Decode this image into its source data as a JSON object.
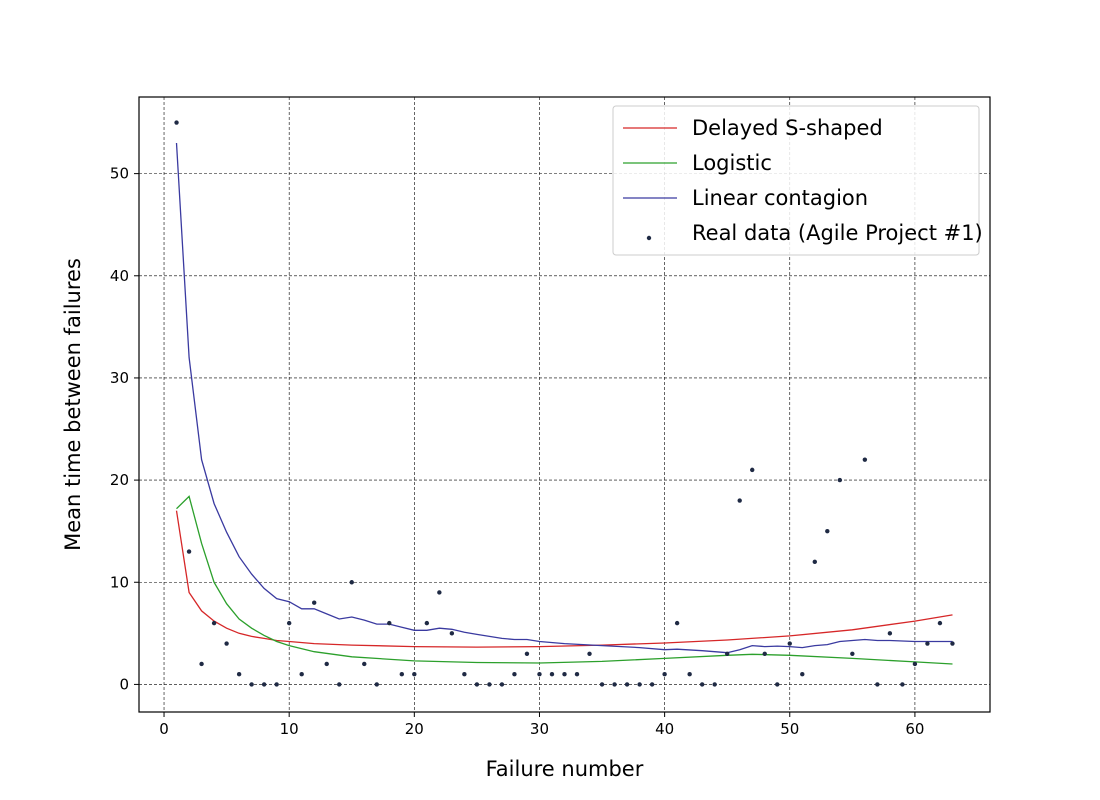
{
  "chart_data": {
    "type": "line",
    "xlabel": "Failure number",
    "ylabel": "Mean time between failures",
    "xlim": [
      -2,
      66
    ],
    "ylim": [
      -2.7,
      57.5
    ],
    "xticks": [
      0,
      10,
      20,
      30,
      40,
      50,
      60
    ],
    "yticks": [
      0,
      10,
      20,
      30,
      40,
      50
    ],
    "grid": true,
    "legend_position": "top-right",
    "series": [
      {
        "name": "Delayed S-shaped",
        "kind": "line",
        "color": "#d62728",
        "x": [
          1,
          2,
          3,
          4,
          5,
          6,
          7,
          8,
          9,
          10,
          12,
          15,
          20,
          25,
          30,
          35,
          40,
          45,
          50,
          55,
          60,
          63
        ],
        "y": [
          17,
          9,
          7.2,
          6.2,
          5.5,
          5.0,
          4.7,
          4.5,
          4.3,
          4.2,
          4.0,
          3.85,
          3.7,
          3.65,
          3.7,
          3.85,
          4.05,
          4.35,
          4.75,
          5.35,
          6.2,
          6.8
        ]
      },
      {
        "name": "Logistic",
        "kind": "line",
        "color": "#2ca02c",
        "x": [
          1,
          2,
          3,
          4,
          5,
          6,
          7,
          8,
          9,
          10,
          12,
          15,
          20,
          25,
          30,
          35,
          40,
          45,
          47,
          50,
          55,
          60,
          63
        ],
        "y": [
          17.2,
          18.4,
          13.8,
          10,
          7.9,
          6.4,
          5.5,
          4.8,
          4.2,
          3.8,
          3.2,
          2.7,
          2.3,
          2.15,
          2.1,
          2.25,
          2.55,
          2.85,
          2.95,
          2.85,
          2.55,
          2.2,
          2.0
        ]
      },
      {
        "name": "Linear contagion",
        "kind": "line",
        "color": "#3a3aa0",
        "x": [
          1,
          2,
          3,
          4,
          5,
          6,
          7,
          8,
          9,
          10,
          11,
          12,
          13,
          14,
          15,
          16,
          17,
          18,
          19,
          20,
          21,
          22,
          23,
          24,
          25,
          26,
          27,
          28,
          29,
          30,
          32,
          35,
          38,
          40,
          41,
          43,
          45,
          46,
          47,
          48,
          49,
          50,
          51,
          52,
          53,
          54,
          55,
          56,
          57,
          58,
          60,
          63
        ],
        "y": [
          53,
          32,
          22,
          17.7,
          14.9,
          12.5,
          10.8,
          9.4,
          8.4,
          8.1,
          7.4,
          7.4,
          6.9,
          6.4,
          6.6,
          6.3,
          5.9,
          5.9,
          5.6,
          5.3,
          5.3,
          5.5,
          5.4,
          5.1,
          4.9,
          4.7,
          4.5,
          4.4,
          4.4,
          4.2,
          4.0,
          3.8,
          3.6,
          3.4,
          3.45,
          3.3,
          3.1,
          3.4,
          3.8,
          3.7,
          3.75,
          3.7,
          3.6,
          3.8,
          3.9,
          4.2,
          4.3,
          4.4,
          4.3,
          4.3,
          4.2,
          4.2
        ]
      },
      {
        "name": "Real data (Agile Project #1)",
        "kind": "scatter",
        "color": "#1f2a44",
        "x": [
          1,
          2,
          3,
          4,
          5,
          6,
          7,
          8,
          9,
          10,
          11,
          12,
          13,
          14,
          15,
          16,
          17,
          18,
          19,
          20,
          21,
          22,
          23,
          24,
          25,
          26,
          27,
          28,
          29,
          30,
          31,
          32,
          33,
          34,
          35,
          36,
          37,
          38,
          39,
          40,
          41,
          42,
          43,
          44,
          45,
          46,
          47,
          48,
          49,
          50,
          51,
          52,
          53,
          54,
          55,
          56,
          57,
          58,
          59,
          60,
          61,
          62,
          63
        ],
        "y": [
          55,
          13,
          2,
          6,
          4,
          1,
          0,
          0,
          0,
          6,
          1,
          8,
          2,
          0,
          10,
          2,
          0,
          6,
          1,
          1,
          6,
          9,
          5,
          1,
          0,
          0,
          0,
          1,
          3,
          1,
          1,
          1,
          1,
          3,
          0,
          0,
          0,
          0,
          0,
          1,
          6,
          1,
          0,
          0,
          3,
          18,
          21,
          3,
          0,
          4,
          1,
          12,
          15,
          20,
          3,
          22,
          0,
          5,
          0,
          2,
          4,
          6,
          4
        ]
      }
    ]
  }
}
